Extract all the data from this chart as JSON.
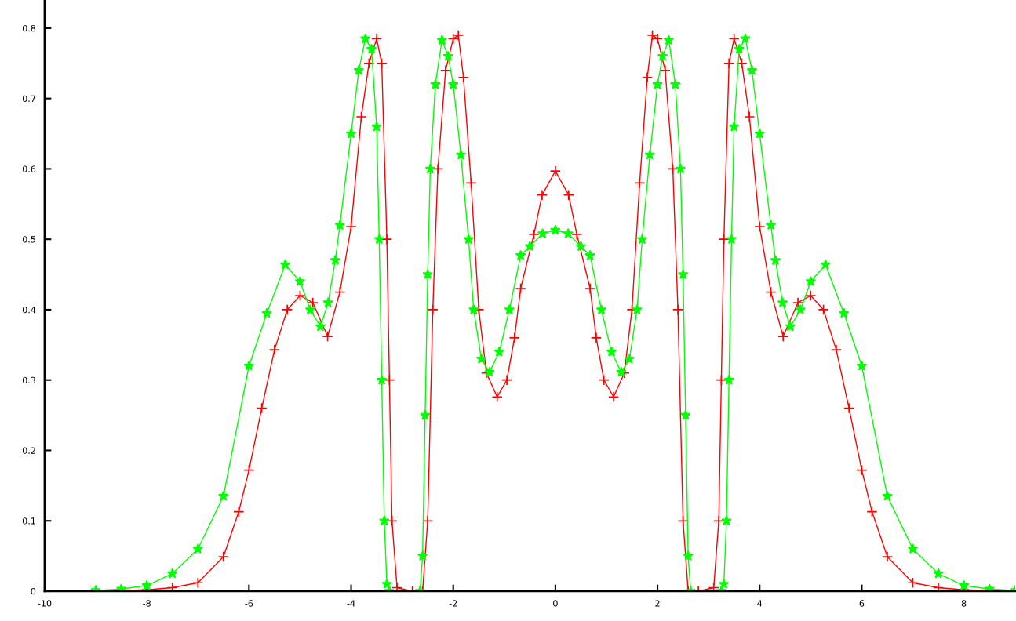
{
  "chart_data": {
    "type": "line",
    "xlim": [
      -10,
      9
    ],
    "ylim": [
      0,
      0.84
    ],
    "xticks": [
      -10,
      -8,
      -6,
      -4,
      -2,
      0,
      2,
      4,
      6,
      8
    ],
    "yticks": [
      0,
      0.1,
      0.2,
      0.3,
      0.4,
      0.5,
      0.6,
      0.7,
      0.8
    ],
    "grid": false,
    "line_style": "solid",
    "series": [
      {
        "color": "#ff0000",
        "marker": "cross",
        "x": [
          -9,
          -8.5,
          -8,
          -7.5,
          -7,
          -6.5,
          -6.2,
          -6,
          -5.75,
          -5.5,
          -5.25,
          -5,
          -4.75,
          -4.46,
          -4.22,
          -4,
          -3.8,
          -3.65,
          -3.5,
          -3.4,
          -3.3,
          -3.25,
          -3.2,
          -3.1,
          -2.8,
          -2.6,
          -2.5,
          -2.4,
          -2.3,
          -2.15,
          -2,
          -1.9,
          -1.8,
          -1.65,
          -1.5,
          -1.35,
          -1.14,
          -0.95,
          -0.8,
          -0.68,
          -0.42,
          -0.26,
          0,
          0.26,
          0.42,
          0.68,
          0.8,
          0.95,
          1.14,
          1.35,
          1.5,
          1.65,
          1.8,
          1.9,
          2,
          2.15,
          2.3,
          2.4,
          2.5,
          2.6,
          2.8,
          3.1,
          3.2,
          3.25,
          3.3,
          3.4,
          3.5,
          3.65,
          3.8,
          4,
          4.22,
          4.46,
          4.75,
          5,
          5.25,
          5.5,
          5.75,
          6,
          6.2,
          6.5,
          7,
          7.5,
          8,
          8.5,
          9
        ],
        "values": [
          0,
          0.001,
          0.002,
          0.005,
          0.012,
          0.049,
          0.113,
          0.172,
          0.26,
          0.343,
          0.4,
          0.42,
          0.41,
          0.362,
          0.425,
          0.518,
          0.674,
          0.75,
          0.785,
          0.75,
          0.5,
          0.3,
          0.1,
          0.005,
          0,
          0,
          0.1,
          0.4,
          0.6,
          0.74,
          0.785,
          0.79,
          0.73,
          0.58,
          0.4,
          0.31,
          0.276,
          0.3,
          0.36,
          0.43,
          0.507,
          0.563,
          0.597,
          0.563,
          0.507,
          0.43,
          0.36,
          0.3,
          0.276,
          0.31,
          0.4,
          0.58,
          0.73,
          0.79,
          0.785,
          0.74,
          0.6,
          0.4,
          0.1,
          0,
          0,
          0.005,
          0.1,
          0.3,
          0.5,
          0.75,
          0.785,
          0.75,
          0.674,
          0.518,
          0.425,
          0.362,
          0.41,
          0.42,
          0.4,
          0.343,
          0.26,
          0.172,
          0.113,
          0.049,
          0.012,
          0.005,
          0.002,
          0.001,
          0
        ]
      },
      {
        "color": "#00ff00",
        "marker": "star",
        "x": [
          -9,
          -8.5,
          -8,
          -7.5,
          -7,
          -6.5,
          -6,
          -5.65,
          -5.29,
          -5,
          -4.8,
          -4.6,
          -4.45,
          -4.31,
          -4.22,
          -4,
          -3.85,
          -3.72,
          -3.6,
          -3.5,
          -3.45,
          -3.4,
          -3.35,
          -3.3,
          -3.25,
          -2.65,
          -2.6,
          -2.55,
          -2.5,
          -2.45,
          -2.35,
          -2.22,
          -2.1,
          -2,
          -1.85,
          -1.7,
          -1.6,
          -1.45,
          -1.29,
          -1.1,
          -0.9,
          -0.68,
          -0.5,
          -0.25,
          0,
          0.25,
          0.5,
          0.68,
          0.9,
          1.1,
          1.29,
          1.45,
          1.6,
          1.7,
          1.85,
          2,
          2.1,
          2.22,
          2.35,
          2.45,
          2.5,
          2.55,
          2.6,
          2.65,
          3.25,
          3.3,
          3.35,
          3.4,
          3.45,
          3.5,
          3.6,
          3.72,
          3.85,
          4,
          4.22,
          4.31,
          4.45,
          4.6,
          4.8,
          5,
          5.29,
          5.65,
          6,
          6.5,
          7,
          7.5,
          8,
          8.5,
          9
        ],
        "values": [
          0.001,
          0.003,
          0.008,
          0.025,
          0.06,
          0.135,
          0.32,
          0.395,
          0.464,
          0.44,
          0.4,
          0.376,
          0.41,
          0.47,
          0.52,
          0.65,
          0.74,
          0.785,
          0.77,
          0.66,
          0.5,
          0.3,
          0.1,
          0.01,
          0,
          0,
          0.05,
          0.25,
          0.45,
          0.6,
          0.72,
          0.783,
          0.76,
          0.72,
          0.62,
          0.5,
          0.4,
          0.33,
          0.311,
          0.34,
          0.4,
          0.477,
          0.49,
          0.508,
          0.513,
          0.508,
          0.49,
          0.477,
          0.4,
          0.34,
          0.311,
          0.33,
          0.4,
          0.5,
          0.62,
          0.72,
          0.76,
          0.783,
          0.72,
          0.6,
          0.45,
          0.25,
          0.05,
          0,
          0,
          0.01,
          0.1,
          0.3,
          0.5,
          0.66,
          0.77,
          0.785,
          0.74,
          0.65,
          0.52,
          0.47,
          0.41,
          0.376,
          0.4,
          0.44,
          0.464,
          0.395,
          0.32,
          0.135,
          0.06,
          0.025,
          0.008,
          0.003,
          0.001
        ]
      }
    ]
  }
}
